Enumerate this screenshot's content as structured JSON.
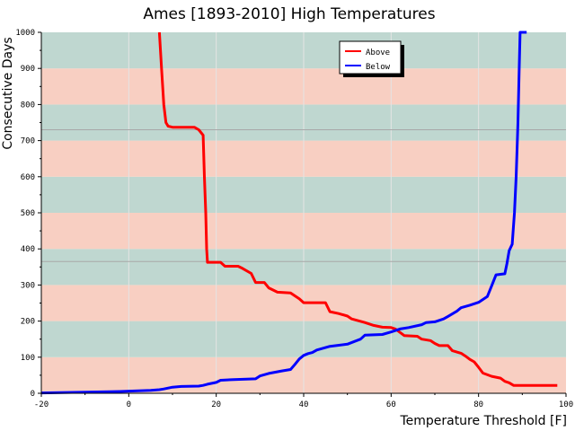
{
  "chart_data": {
    "type": "line",
    "title": "Ames [1893-2010] High Temperatures",
    "xlabel": "Temperature Threshold [F]",
    "ylabel": "Consecutive Days",
    "xlim": [
      -20,
      100
    ],
    "ylim": [
      0,
      1000
    ],
    "x_ticks": [
      -20,
      0,
      20,
      40,
      60,
      80,
      100
    ],
    "y_ticks": [
      0,
      100,
      200,
      300,
      400,
      500,
      600,
      700,
      800,
      900,
      1000
    ],
    "band_colors": [
      "#f8cfc2",
      "#bfd7d0"
    ],
    "reference_lines": [
      365,
      730
    ],
    "legend_position": "top-right",
    "series": [
      {
        "name": "Above",
        "color": "#ff0000",
        "points": [
          [
            7,
            1000
          ],
          [
            7.5,
            900
          ],
          [
            8,
            800
          ],
          [
            8.5,
            750
          ],
          [
            9,
            740
          ],
          [
            10,
            737
          ],
          [
            13,
            737
          ],
          [
            15,
            737
          ],
          [
            16,
            730
          ],
          [
            17,
            715
          ],
          [
            17.3,
            600
          ],
          [
            17.6,
            500
          ],
          [
            17.8,
            400
          ],
          [
            18,
            363
          ],
          [
            21,
            363
          ],
          [
            22,
            352
          ],
          [
            25,
            352
          ],
          [
            26,
            346
          ],
          [
            28,
            332
          ],
          [
            29,
            307
          ],
          [
            31,
            307
          ],
          [
            32,
            292
          ],
          [
            34,
            280
          ],
          [
            37,
            278
          ],
          [
            39,
            262
          ],
          [
            40,
            251
          ],
          [
            45,
            251
          ],
          [
            46,
            226
          ],
          [
            48,
            221
          ],
          [
            50,
            214
          ],
          [
            51,
            206
          ],
          [
            54,
            196
          ],
          [
            56,
            188
          ],
          [
            58,
            183
          ],
          [
            60,
            182
          ],
          [
            61,
            178
          ],
          [
            63,
            160
          ],
          [
            66,
            158
          ],
          [
            67,
            150
          ],
          [
            69,
            146
          ],
          [
            70,
            138
          ],
          [
            71,
            132
          ],
          [
            73,
            132
          ],
          [
            74,
            118
          ],
          [
            76,
            111
          ],
          [
            77,
            103
          ],
          [
            78,
            94
          ],
          [
            79,
            87
          ],
          [
            80,
            72
          ],
          [
            81,
            56
          ],
          [
            83,
            47
          ],
          [
            85,
            42
          ],
          [
            86,
            33
          ],
          [
            87,
            29
          ],
          [
            88,
            22
          ],
          [
            92,
            22
          ],
          [
            98,
            22
          ]
        ]
      },
      {
        "name": "Below",
        "color": "#0000ff",
        "points": [
          [
            -20,
            1
          ],
          [
            -10,
            3
          ],
          [
            -2,
            5
          ],
          [
            0,
            6
          ],
          [
            5,
            8
          ],
          [
            7,
            10
          ],
          [
            8,
            12
          ],
          [
            10,
            17
          ],
          [
            12,
            19
          ],
          [
            16,
            20
          ],
          [
            17,
            22
          ],
          [
            18,
            25
          ],
          [
            20,
            30
          ],
          [
            21,
            36
          ],
          [
            24,
            38
          ],
          [
            29,
            40
          ],
          [
            30,
            48
          ],
          [
            32,
            55
          ],
          [
            35,
            62
          ],
          [
            37,
            66
          ],
          [
            38,
            80
          ],
          [
            39,
            95
          ],
          [
            40,
            105
          ],
          [
            41,
            110
          ],
          [
            42,
            113
          ],
          [
            43,
            120
          ],
          [
            46,
            130
          ],
          [
            50,
            136
          ],
          [
            53,
            150
          ],
          [
            54,
            161
          ],
          [
            56,
            162
          ],
          [
            58,
            163
          ],
          [
            60,
            170
          ],
          [
            62,
            178
          ],
          [
            64,
            182
          ],
          [
            67,
            190
          ],
          [
            68,
            196
          ],
          [
            70,
            198
          ],
          [
            72,
            206
          ],
          [
            73,
            213
          ],
          [
            75,
            227
          ],
          [
            76,
            237
          ],
          [
            78,
            244
          ],
          [
            80,
            252
          ],
          [
            82,
            268
          ],
          [
            83,
            298
          ],
          [
            84,
            328
          ],
          [
            86,
            331
          ],
          [
            86.5,
            360
          ],
          [
            87,
            395
          ],
          [
            87.7,
            413
          ],
          [
            88.2,
            500
          ],
          [
            88.6,
            600
          ],
          [
            89,
            750
          ],
          [
            89.3,
            900
          ],
          [
            89.5,
            1000
          ],
          [
            91,
            1000
          ]
        ]
      }
    ]
  }
}
